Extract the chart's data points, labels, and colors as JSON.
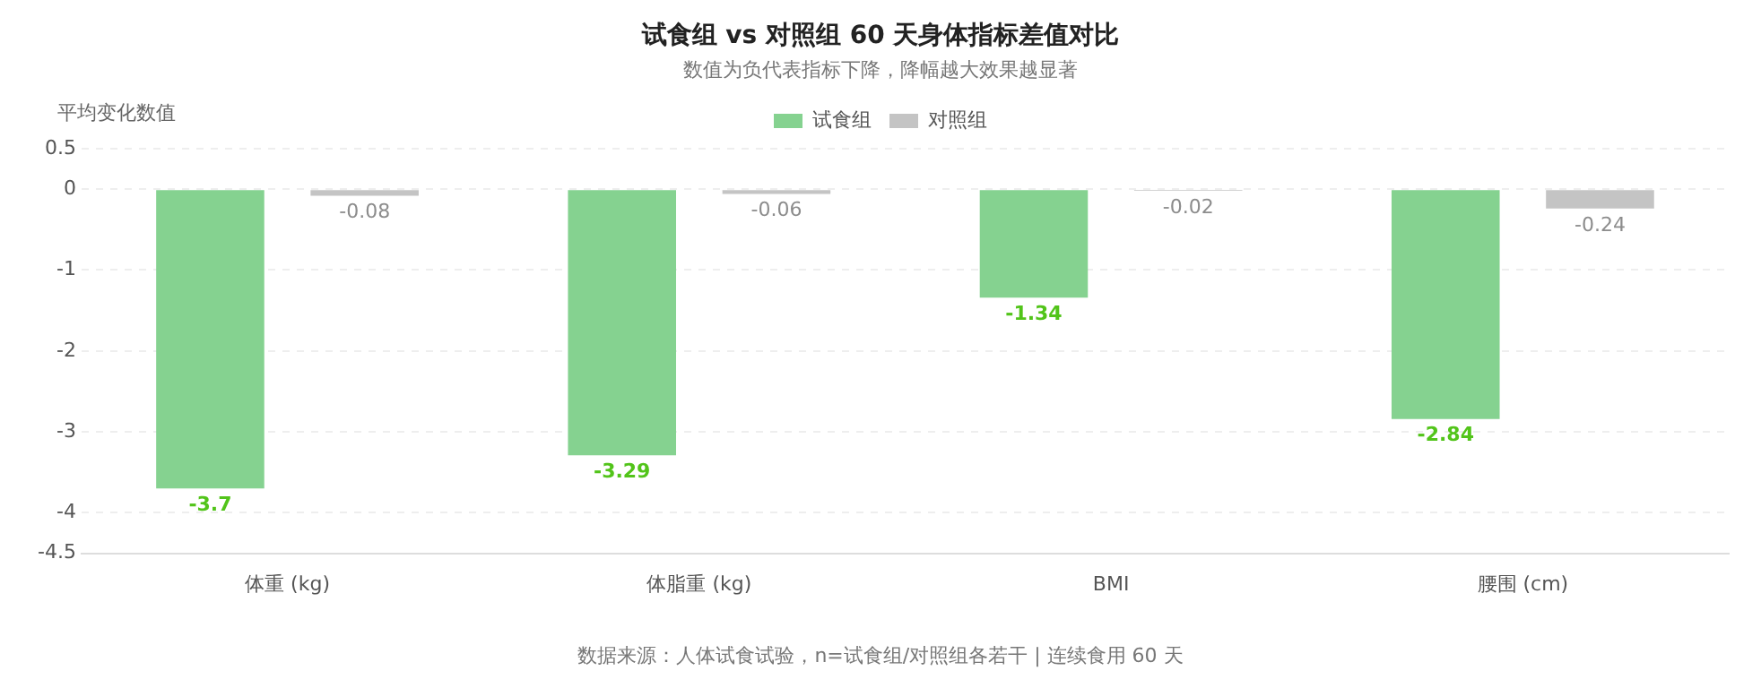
{
  "chart_data": {
    "type": "bar",
    "title": "试食组 vs 对照组 60 天身体指标差值对比",
    "subtitle": "数值为负代表指标下降，降幅越大效果越显著",
    "ylabel": "平均变化数值",
    "categories": [
      "体重 (kg)",
      "体脂重 (kg)",
      "BMI",
      "腰围 (cm)"
    ],
    "series": [
      {
        "name": "试食组",
        "color": "#85d290",
        "values": [
          -3.7,
          -3.29,
          -1.34,
          -2.84
        ]
      },
      {
        "name": "对照组",
        "color": "#c4c4c4",
        "values": [
          -0.08,
          -0.06,
          -0.02,
          -0.24
        ]
      }
    ],
    "ylim": [
      -4.5,
      0.5
    ],
    "yticks": [
      0.5,
      0,
      -1,
      -2,
      -3,
      -4,
      -4.5
    ],
    "grid": "y",
    "legend": "top",
    "data_labels": true,
    "annotations": [
      "数据来源：人体试食试验，n=试食组/对照组各若干 | 连续食用 60 天"
    ]
  }
}
